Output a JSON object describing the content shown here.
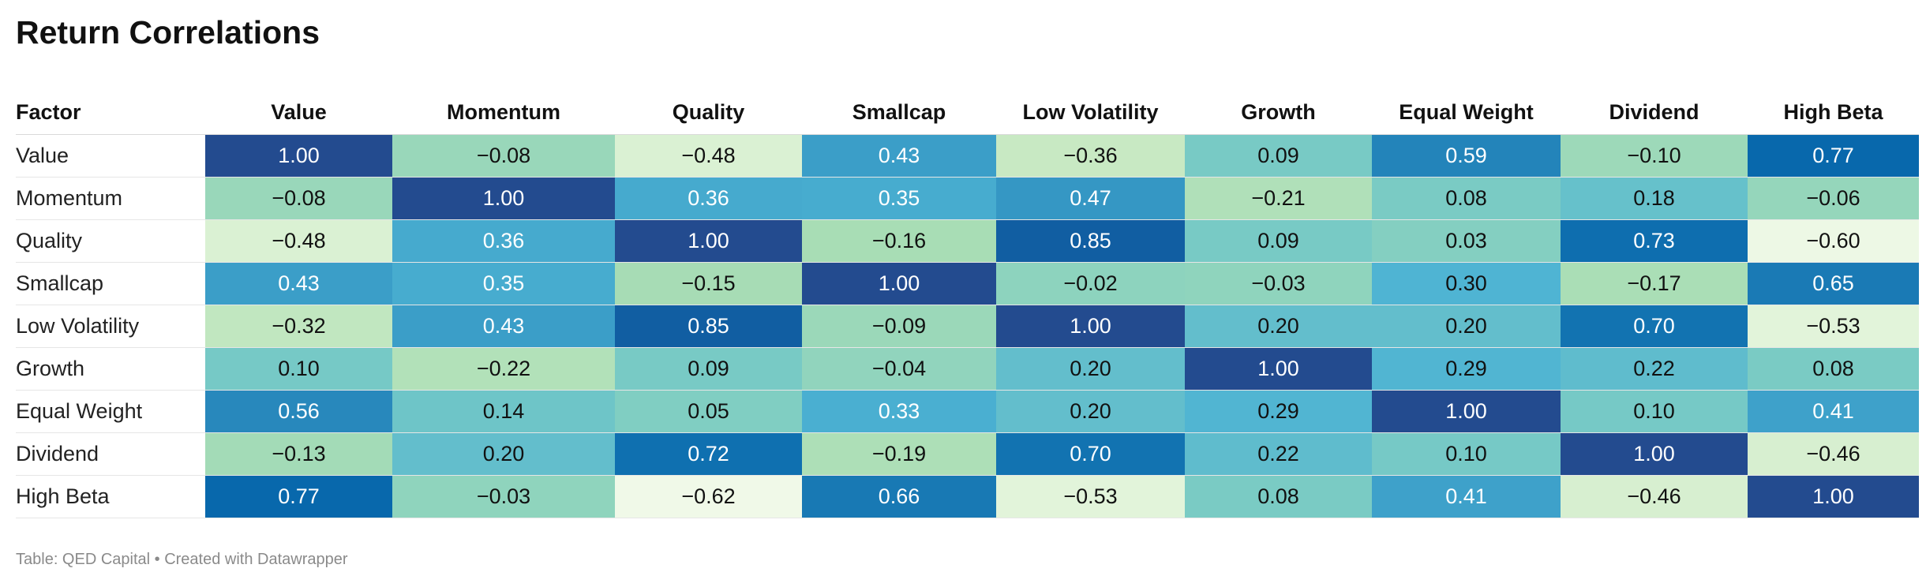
{
  "title": "Return Correlations",
  "footer": "Table: QED Capital • Created with Datawrapper",
  "chart_data": {
    "type": "heatmap",
    "title": "Return Correlations",
    "corner_label": "Factor",
    "columns": [
      "Value",
      "Momentum",
      "Quality",
      "Smallcap",
      "Low Volatility",
      "Growth",
      "Equal Weight",
      "Dividend",
      "High Beta"
    ],
    "rows": [
      "Value",
      "Momentum",
      "Quality",
      "Smallcap",
      "Low Volatility",
      "Growth",
      "Equal Weight",
      "Dividend",
      "High Beta"
    ],
    "values": [
      [
        1.0,
        -0.08,
        -0.48,
        0.43,
        -0.36,
        0.09,
        0.59,
        -0.1,
        0.77
      ],
      [
        -0.08,
        1.0,
        0.36,
        0.35,
        0.47,
        -0.21,
        0.08,
        0.18,
        -0.06
      ],
      [
        -0.48,
        0.36,
        1.0,
        -0.16,
        0.85,
        0.09,
        0.03,
        0.73,
        -0.6
      ],
      [
        0.43,
        0.35,
        -0.15,
        1.0,
        -0.02,
        -0.03,
        0.3,
        -0.17,
        0.65
      ],
      [
        -0.32,
        0.43,
        0.85,
        -0.09,
        1.0,
        0.2,
        0.2,
        0.7,
        -0.53
      ],
      [
        0.1,
        -0.22,
        0.09,
        -0.04,
        0.2,
        1.0,
        0.29,
        0.22,
        0.08
      ],
      [
        0.56,
        0.14,
        0.05,
        0.33,
        0.2,
        0.29,
        1.0,
        0.1,
        0.41
      ],
      [
        -0.13,
        0.2,
        0.72,
        -0.19,
        0.7,
        0.22,
        0.1,
        1.0,
        -0.46
      ],
      [
        0.77,
        -0.03,
        -0.62,
        0.66,
        -0.53,
        0.08,
        0.41,
        -0.46,
        1.0
      ]
    ],
    "color_scale": {
      "min": -0.62,
      "max": 1.0,
      "stops": [
        "#f0f9e8",
        "#ccebc5",
        "#a8ddb5",
        "#7bccc4",
        "#4eb3d3",
        "#2b8cbe",
        "#0868ac",
        "#234b8f"
      ]
    }
  }
}
